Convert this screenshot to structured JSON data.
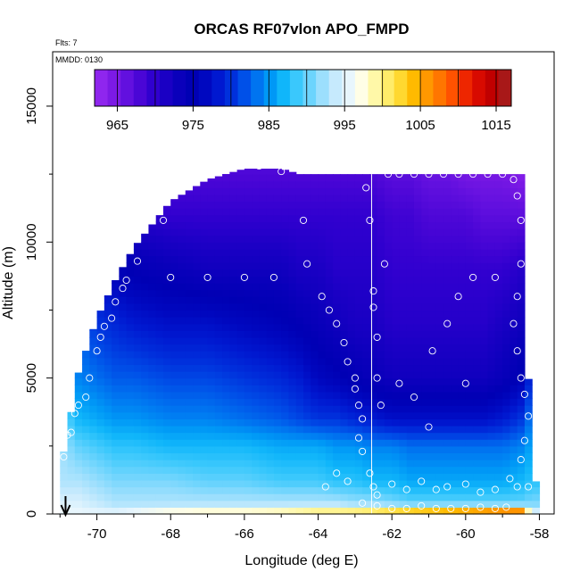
{
  "chart_data": {
    "type": "heatmap",
    "title": "ORCAS RF07vlon APO_FMPD",
    "flts_label": "Flts: 7",
    "mmdd_label": "MMDD: 0130",
    "xlabel": "Longitude (deg E)",
    "ylabel": "Altitude (m)",
    "xlim": [
      -71.2,
      -57.6
    ],
    "ylim": [
      0,
      17000
    ],
    "x_ticks": [
      -70,
      -68,
      -66,
      -64,
      -62,
      -60,
      -58
    ],
    "x_tick_labels": [
      "-70",
      "-68",
      "-66",
      "-64",
      "-62",
      "-60",
      "-58"
    ],
    "y_ticks": [
      0,
      5000,
      10000,
      15000
    ],
    "y_tick_labels": [
      "0",
      "5000",
      "10000",
      "15000"
    ],
    "colorbar": {
      "range": [
        962,
        1017
      ],
      "ticks": [
        965,
        975,
        985,
        995,
        1005,
        1015
      ],
      "tick_labels": [
        "965",
        "975",
        "985",
        "995",
        "1005",
        "1015"
      ],
      "colors": [
        "#8f26ee",
        "#7c1ae5",
        "#6210df",
        "#4a06d6",
        "#3000cf",
        "#1a00c4",
        "#0a00bb",
        "#0000b4",
        "#0008c0",
        "#0018d0",
        "#0030dc",
        "#0050e8",
        "#0074f0",
        "#0098f6",
        "#10b6fa",
        "#3ac8fc",
        "#6cd4fd",
        "#9cdffd",
        "#c6eafd",
        "#e8f6fd",
        "#fffee6",
        "#fff8a8",
        "#ffec6a",
        "#ffd830",
        "#ffba00",
        "#ff9800",
        "#ff7600",
        "#ff5200",
        "#ee2600",
        "#d80a00",
        "#c00000",
        "#a81818"
      ]
    },
    "vertical_line_lon": -62.55,
    "arrow_lon": -70.85,
    "field": {
      "lons": [
        -70.9,
        -70.5,
        -70,
        -69.5,
        -69,
        -68,
        -67,
        -66,
        -65,
        -64.5,
        -64,
        -63.5,
        -63,
        -62.5,
        -62,
        -61.5,
        -61,
        -60.5,
        -60,
        -59.5,
        -59,
        -58.5,
        -58.2
      ],
      "top_profile_alt": [
        2300,
        5200,
        7200,
        8600,
        9800,
        11500,
        12300,
        12700,
        12700,
        12500,
        12500,
        12500,
        12500,
        12500,
        12500,
        12500,
        12500,
        12500,
        12500,
        12500,
        12500,
        12500,
        1200
      ],
      "levels_alt": [
        0,
        400,
        1200,
        2500,
        3500,
        5000,
        7000,
        9000,
        11000,
        12600
      ],
      "values": [
        [
          996,
          996,
          996,
          996,
          997,
          999,
          1000,
          1000,
          1001,
          1002,
          1003,
          1003,
          1004,
          1005,
          1007,
          1009,
          1010,
          1011,
          1012,
          1013,
          1014,
          1014,
          996
        ],
        [
          995,
          995,
          994,
          993,
          993,
          993,
          993,
          993,
          993,
          993,
          993,
          993,
          992,
          992,
          991,
          990,
          990,
          990,
          990,
          990,
          990,
          990,
          991
        ],
        [
          993,
          993,
          992,
          991,
          991,
          991,
          990,
          990,
          989,
          989,
          989,
          988,
          988,
          987,
          987,
          986,
          986,
          986,
          986,
          986,
          986,
          987,
          988
        ],
        [
          992,
          990,
          989,
          988,
          988,
          987,
          987,
          987,
          986,
          986,
          986,
          985,
          985,
          984,
          984,
          983,
          983,
          983,
          983,
          983,
          983,
          984,
          986
        ],
        [
          990,
          987,
          986,
          985,
          985,
          984,
          984,
          983,
          982,
          981,
          980,
          980,
          979,
          978,
          977,
          977,
          977,
          977,
          977,
          977,
          978,
          980,
          984
        ],
        [
          989,
          984,
          983,
          982,
          982,
          981,
          981,
          980,
          979,
          978,
          976,
          975,
          974,
          973,
          972,
          972,
          972,
          972,
          972,
          972,
          973,
          975,
          980
        ],
        [
          987,
          982,
          980,
          979,
          978,
          977,
          977,
          976,
          975,
          974,
          973,
          972,
          971,
          971,
          970,
          970,
          970,
          970,
          970,
          970,
          971,
          972,
          978
        ],
        [
          986,
          980,
          977,
          975,
          974,
          973,
          972,
          972,
          972,
          971,
          971,
          970,
          970,
          970,
          969,
          969,
          969,
          969,
          969,
          969,
          969,
          970,
          976
        ],
        [
          985,
          978,
          975,
          972,
          970,
          969,
          969,
          969,
          969,
          969,
          969,
          969,
          969,
          969,
          968,
          968,
          967,
          967,
          967,
          966,
          966,
          966,
          975
        ],
        [
          984,
          977,
          973,
          970,
          968,
          967,
          967,
          967,
          967,
          967,
          967,
          967,
          967,
          967,
          966,
          966,
          965,
          965,
          964,
          964,
          964,
          963,
          974
        ]
      ]
    },
    "sample_points": [
      [
        -71.0,
        200
      ],
      [
        -70.9,
        2100
      ],
      [
        -70.9,
        2700
      ],
      [
        -70.8,
        2900
      ],
      [
        -70.7,
        3000
      ],
      [
        -70.6,
        3700
      ],
      [
        -70.5,
        4000
      ],
      [
        -70.3,
        4300
      ],
      [
        -70.2,
        5000
      ],
      [
        -70.0,
        6000
      ],
      [
        -69.9,
        6500
      ],
      [
        -69.8,
        6900
      ],
      [
        -69.6,
        7200
      ],
      [
        -69.5,
        7800
      ],
      [
        -69.3,
        8300
      ],
      [
        -69.2,
        8600
      ],
      [
        -68.9,
        9300
      ],
      [
        -68.2,
        10800
      ],
      [
        -67.7,
        12200
      ],
      [
        -67.2,
        12500
      ],
      [
        -66.6,
        12700
      ],
      [
        -65.6,
        12800
      ],
      [
        -65.0,
        12600
      ],
      [
        -68.0,
        8700
      ],
      [
        -67.0,
        8700
      ],
      [
        -66.0,
        8700
      ],
      [
        -65.2,
        8700
      ],
      [
        -64.4,
        10800
      ],
      [
        -64.3,
        9200
      ],
      [
        -63.9,
        8000
      ],
      [
        -63.7,
        7500
      ],
      [
        -63.5,
        7000
      ],
      [
        -63.3,
        6300
      ],
      [
        -63.2,
        5600
      ],
      [
        -63.0,
        5000
      ],
      [
        -63.0,
        4600
      ],
      [
        -62.9,
        4000
      ],
      [
        -62.8,
        3500
      ],
      [
        -62.9,
        2800
      ],
      [
        -62.8,
        2300
      ],
      [
        -62.7,
        12000
      ],
      [
        -62.6,
        10800
      ],
      [
        -62.5,
        8200
      ],
      [
        -62.5,
        7600
      ],
      [
        -62.4,
        6500
      ],
      [
        -62.4,
        5000
      ],
      [
        -62.3,
        4000
      ],
      [
        -62.2,
        9200
      ],
      [
        -62.1,
        12500
      ],
      [
        -61.8,
        12500
      ],
      [
        -61.4,
        12500
      ],
      [
        -61.0,
        12500
      ],
      [
        -60.6,
        12500
      ],
      [
        -60.2,
        12500
      ],
      [
        -59.8,
        12500
      ],
      [
        -59.4,
        12500
      ],
      [
        -59.0,
        12500
      ],
      [
        -58.7,
        12300
      ],
      [
        -58.6,
        11700
      ],
      [
        -58.5,
        10800
      ],
      [
        -58.5,
        9200
      ],
      [
        -58.6,
        8000
      ],
      [
        -58.7,
        7000
      ],
      [
        -58.6,
        6000
      ],
      [
        -58.5,
        5000
      ],
      [
        -58.4,
        4400
      ],
      [
        -58.3,
        3600
      ],
      [
        -58.4,
        2700
      ],
      [
        -58.5,
        2000
      ],
      [
        -58.3,
        1000
      ],
      [
        -62.6,
        1500
      ],
      [
        -62.5,
        1000
      ],
      [
        -62.4,
        700
      ],
      [
        -62.0,
        1100
      ],
      [
        -61.6,
        900
      ],
      [
        -61.2,
        1200
      ],
      [
        -60.8,
        900
      ],
      [
        -60.5,
        1000
      ],
      [
        -60.0,
        1100
      ],
      [
        -59.6,
        800
      ],
      [
        -59.2,
        900
      ],
      [
        -58.8,
        1300
      ],
      [
        -58.6,
        1000
      ],
      [
        -61.0,
        3200
      ],
      [
        -61.4,
        4300
      ],
      [
        -60.9,
        6000
      ],
      [
        -60.5,
        7000
      ],
      [
        -60.2,
        8000
      ],
      [
        -59.8,
        8700
      ],
      [
        -59.2,
        8700
      ],
      [
        -61.8,
        4800
      ],
      [
        -60.0,
        4800
      ],
      [
        -63.8,
        1000
      ],
      [
        -63.5,
        1500
      ],
      [
        -63.2,
        1200
      ],
      [
        -62.8,
        400
      ],
      [
        -62.4,
        300
      ],
      [
        -62.0,
        200
      ],
      [
        -61.6,
        200
      ],
      [
        -61.2,
        300
      ],
      [
        -60.8,
        200
      ],
      [
        -60.4,
        200
      ],
      [
        -60.0,
        200
      ],
      [
        -59.6,
        250
      ],
      [
        -59.2,
        200
      ],
      [
        -58.9,
        250
      ]
    ]
  }
}
